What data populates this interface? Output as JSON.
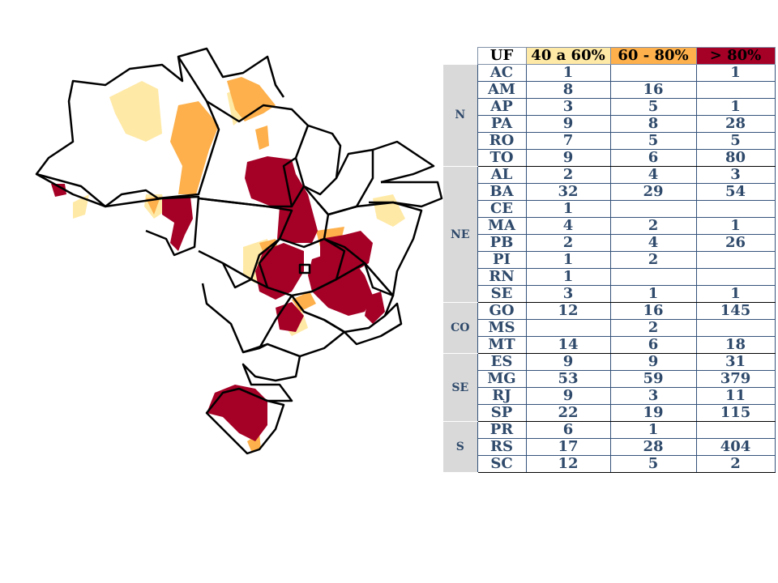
{
  "legend_header": {
    "uf": "UF",
    "low": "40 a 60%",
    "mid": "60 - 80%",
    "high": "> 80%"
  },
  "colors": {
    "low": "#ffe9a6",
    "mid": "#fdb04b",
    "high": "#a50026",
    "border": "#000000",
    "region_bg": "#d9d9d9"
  },
  "regions": [
    {
      "name": "N",
      "rows": [
        {
          "uf": "AC",
          "low": "1",
          "mid": "",
          "high": "1"
        },
        {
          "uf": "AM",
          "low": "8",
          "mid": "16",
          "high": ""
        },
        {
          "uf": "AP",
          "low": "3",
          "mid": "5",
          "high": "1"
        },
        {
          "uf": "PA",
          "low": "9",
          "mid": "8",
          "high": "28"
        },
        {
          "uf": "RO",
          "low": "7",
          "mid": "5",
          "high": "5"
        },
        {
          "uf": "TO",
          "low": "9",
          "mid": "6",
          "high": "80"
        }
      ]
    },
    {
      "name": "NE",
      "rows": [
        {
          "uf": "AL",
          "low": "2",
          "mid": "4",
          "high": "3"
        },
        {
          "uf": "BA",
          "low": "32",
          "mid": "29",
          "high": "54"
        },
        {
          "uf": "CE",
          "low": "1",
          "mid": "",
          "high": ""
        },
        {
          "uf": "MA",
          "low": "4",
          "mid": "2",
          "high": "1"
        },
        {
          "uf": "PB",
          "low": "2",
          "mid": "4",
          "high": "26"
        },
        {
          "uf": "PI",
          "low": "1",
          "mid": "2",
          "high": ""
        },
        {
          "uf": "RN",
          "low": "1",
          "mid": "",
          "high": ""
        },
        {
          "uf": "SE",
          "low": "3",
          "mid": "1",
          "high": "1"
        }
      ]
    },
    {
      "name": "CO",
      "rows": [
        {
          "uf": "GO",
          "low": "12",
          "mid": "16",
          "high": "145"
        },
        {
          "uf": "MS",
          "low": "",
          "mid": "2",
          "high": ""
        },
        {
          "uf": "MT",
          "low": "14",
          "mid": "6",
          "high": "18"
        }
      ]
    },
    {
      "name": "SE",
      "rows": [
        {
          "uf": "ES",
          "low": "9",
          "mid": "9",
          "high": "31"
        },
        {
          "uf": "MG",
          "low": "53",
          "mid": "59",
          "high": "379"
        },
        {
          "uf": "RJ",
          "low": "9",
          "mid": "3",
          "high": "11"
        },
        {
          "uf": "SP",
          "low": "22",
          "mid": "19",
          "high": "115"
        }
      ]
    },
    {
      "name": "S",
      "rows": [
        {
          "uf": "PR",
          "low": "6",
          "mid": "1",
          "high": ""
        },
        {
          "uf": "RS",
          "low": "17",
          "mid": "28",
          "high": "404"
        },
        {
          "uf": "SC",
          "low": "12",
          "mid": "5",
          "high": "2"
        }
      ]
    }
  ]
}
